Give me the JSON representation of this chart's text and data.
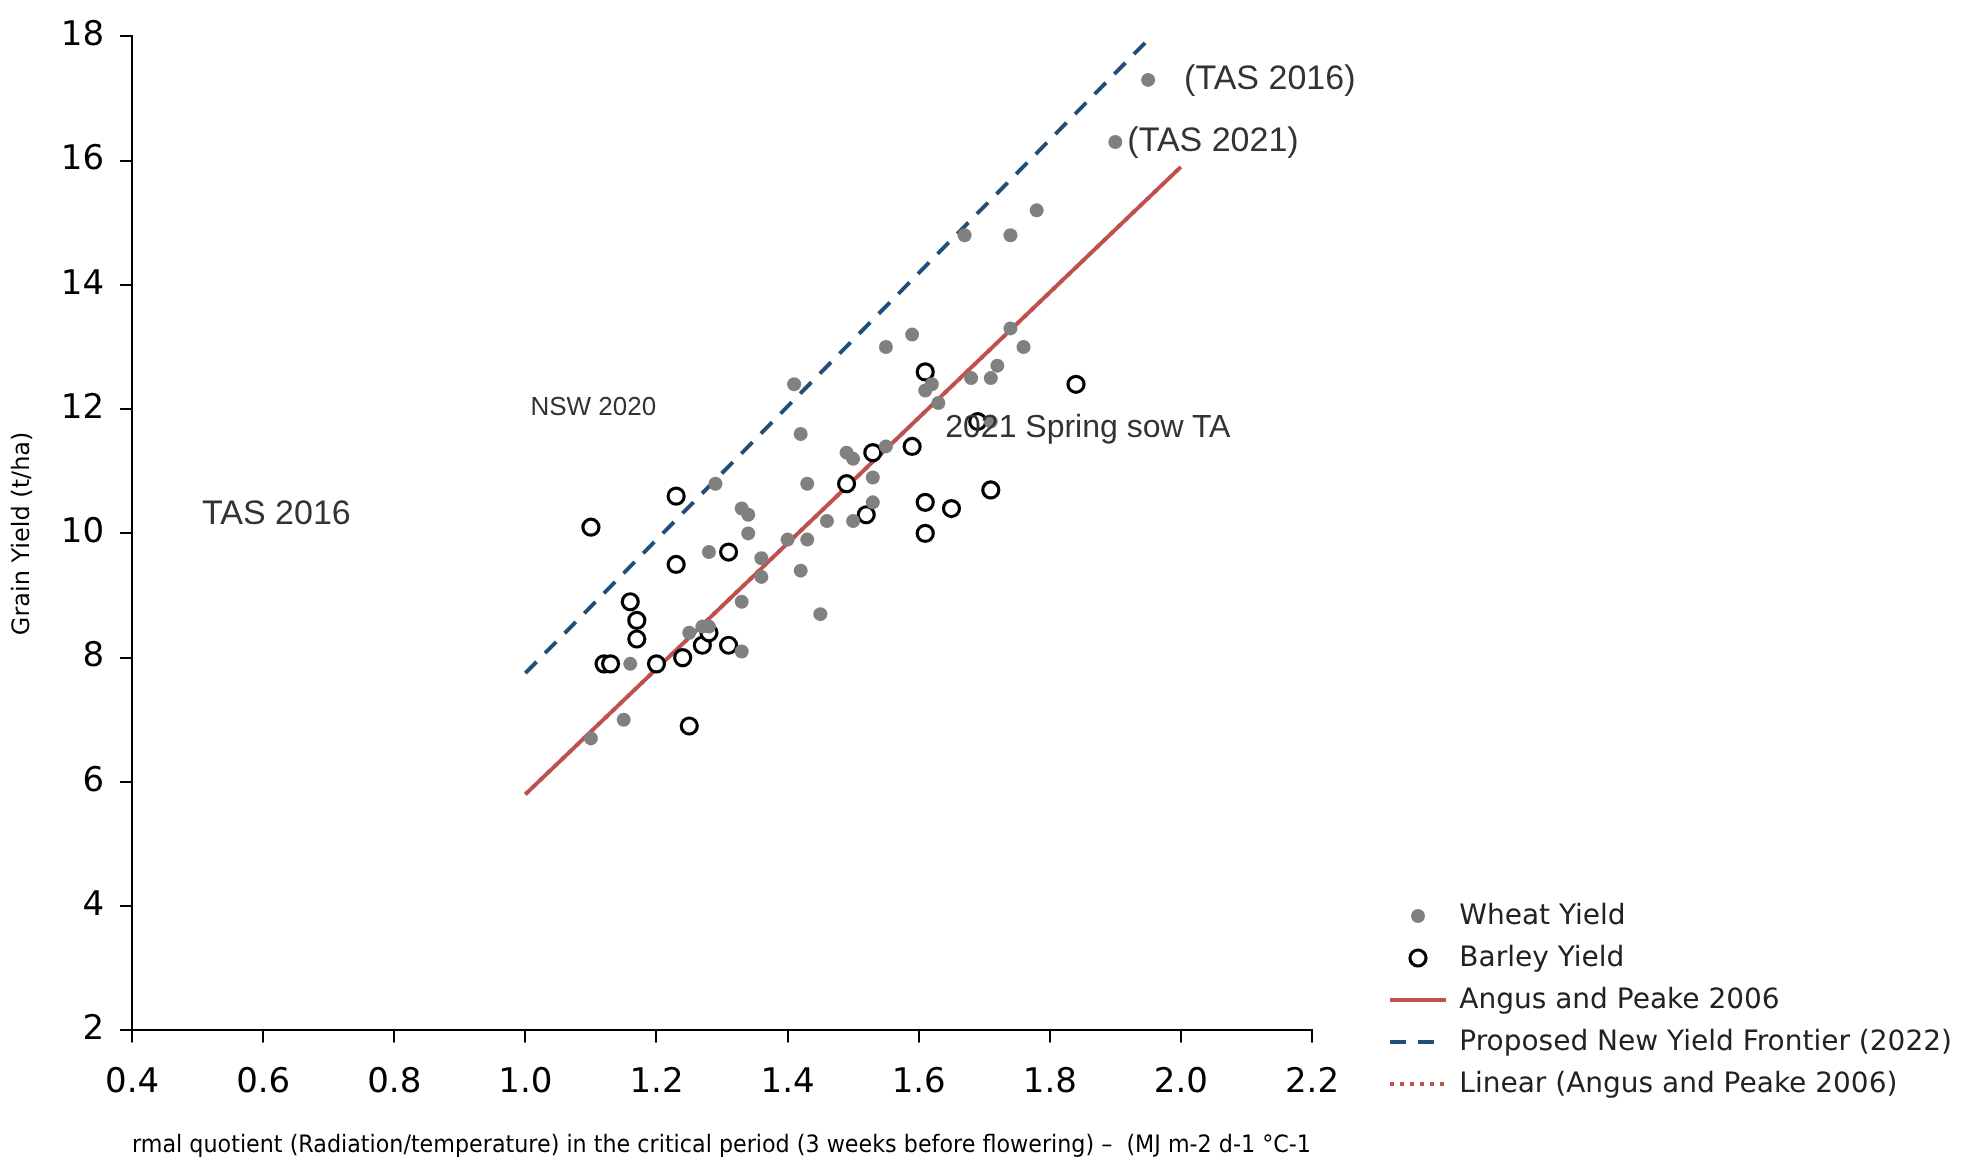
{
  "chart_data": {
    "type": "scatter",
    "xlabel": "rmal quotient (Radiation/temperature) in the critical period (3 weeks before flowering) –  (MJ m-2 d-1 °C-1",
    "ylabel": "Grain Yield (t/ha)",
    "xlim": [
      0.4,
      2.2
    ],
    "ylim": [
      2,
      18
    ],
    "xticks": [
      0.4,
      0.6,
      0.8,
      {
        "value": 1,
        "label": "1.0"
      },
      1.2,
      1.4,
      1.6,
      1.8,
      {
        "value": 2,
        "label": "2.0"
      },
      2.2
    ],
    "yticks": [
      2,
      4,
      6,
      8,
      10,
      12,
      14,
      16,
      18
    ],
    "legend": "bottom right",
    "marker": "circle",
    "series": [
      {
        "name": "Wheat Yield",
        "type": "scatter",
        "color": "#808080",
        "x": [
          1.1,
          1.15,
          1.16,
          1.25,
          1.27,
          1.28,
          1.33,
          1.33,
          1.36,
          1.42,
          1.45,
          1.4,
          1.43,
          1.36,
          1.28,
          1.34,
          1.33,
          1.34,
          1.29,
          1.43,
          1.46,
          1.5,
          1.53,
          1.53,
          1.49,
          1.5,
          1.55,
          1.42,
          1.41,
          1.55,
          1.59,
          1.61,
          1.62,
          1.63,
          1.68,
          1.71,
          1.72,
          1.71,
          1.74,
          1.76,
          1.67,
          1.74,
          1.78,
          1.9,
          1.95
        ],
        "values": [
          6.7,
          7.0,
          7.9,
          8.4,
          8.5,
          8.5,
          8.1,
          8.9,
          9.3,
          9.4,
          8.7,
          9.9,
          9.9,
          9.6,
          9.7,
          10.0,
          10.4,
          10.3,
          10.8,
          10.8,
          10.2,
          10.2,
          10.5,
          10.9,
          11.3,
          11.2,
          11.4,
          11.6,
          12.4,
          13.0,
          13.2,
          12.3,
          12.4,
          12.1,
          12.5,
          12.5,
          12.7,
          11.8,
          13.3,
          13.0,
          14.8,
          14.8,
          15.2,
          16.3,
          17.3
        ]
      },
      {
        "name": "Barley Yield",
        "type": "scatter",
        "color": "#000000",
        "x": [
          1.1,
          1.23,
          1.23,
          1.31,
          1.16,
          1.17,
          1.17,
          1.12,
          1.13,
          1.2,
          1.24,
          1.27,
          1.28,
          1.31,
          1.25,
          1.53,
          1.49,
          1.52,
          1.61,
          1.84,
          1.69,
          1.59,
          1.71,
          1.61,
          1.65,
          1.61
        ],
        "values": [
          10.1,
          10.6,
          9.5,
          9.7,
          8.9,
          8.6,
          8.3,
          7.9,
          7.9,
          7.9,
          8.0,
          8.2,
          8.4,
          8.2,
          6.9,
          11.3,
          10.8,
          10.3,
          12.6,
          12.4,
          11.8,
          11.4,
          10.7,
          10.5,
          10.4,
          10.0
        ]
      },
      {
        "name": "Angus and Peake 2006",
        "type": "line",
        "color": "#c0504d",
        "line_style": "solid",
        "marker": "none",
        "x": [
          1.0,
          2.0
        ],
        "values": [
          5.8,
          15.9
        ]
      },
      {
        "name": "Proposed New Yield Frontier (2022)",
        "type": "line",
        "color": "#1f4e79",
        "line_style": "dashed",
        "marker": "none",
        "x": [
          1.0,
          1.955
        ],
        "values": [
          7.75,
          18.0
        ]
      },
      {
        "name": "Linear (Angus and Peake 2006)",
        "type": "line",
        "color": "#c0504d",
        "line_style": "dotted",
        "marker": "none",
        "x": [
          1.0,
          2.0
        ],
        "values": [
          5.8,
          15.9
        ]
      }
    ],
    "annotations": [
      {
        "text": "(TAS 2016)",
        "x": 1.95,
        "y": 17.3
      },
      {
        "text": "(TAS 2021)",
        "x": 1.9,
        "y": 16.3
      },
      {
        "text": "NSW 2020",
        "x": 1.23,
        "y": 10.6
      },
      "TAS 2016",
      {
        "text": "2021 Spring sow TA",
        "x": 1.61,
        "y": 10.5
      }
    ]
  }
}
